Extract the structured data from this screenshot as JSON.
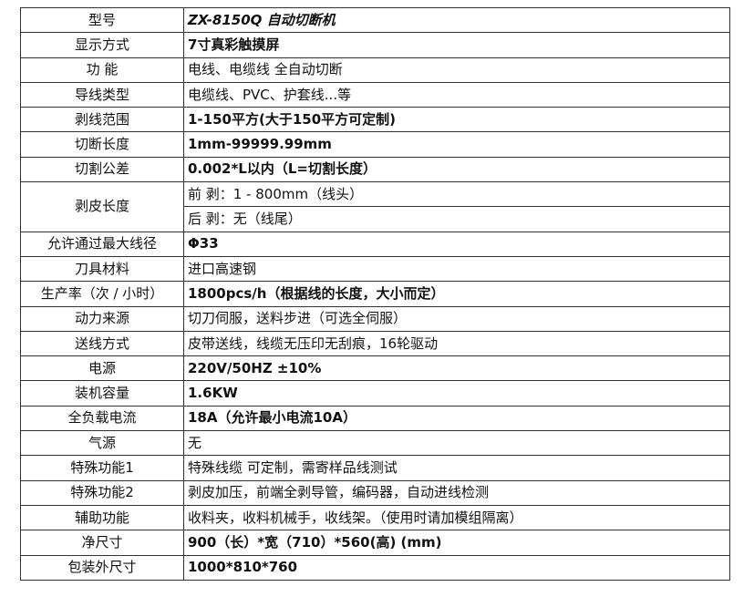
{
  "table": {
    "rows": [
      [
        "型号",
        "ZX-8150Q  自动切断机"
      ],
      [
        "显示方式",
        "7寸真彩触摸屏"
      ],
      [
        "功  能",
        "电线、电缆线 全自动切断"
      ],
      [
        "导线类型",
        "电缆线、PVC、护套线...等"
      ],
      [
        "剥线范围",
        "1-150平方(大于150平方可定制)"
      ],
      [
        "切断长度",
        "1mm-99999.99mm"
      ],
      [
        "切割公差",
        "0.002*L以内（L=切割长度）"
      ],
      [
        "剥皮长度",
        "前 剥：1 - 800mm（线头）",
        "后 剥：无（线尾）"
      ],
      [
        "允许通过最大线径",
        "Φ33"
      ],
      [
        "刀具材料",
        "进口高速钢"
      ],
      [
        "生产率（次 / 小时）",
        "1800pcs/h（根据线的长度，大小而定）"
      ],
      [
        "动力来源",
        "切刀伺服，送料步进（可选全伺服）"
      ],
      [
        "送线方式",
        "皮带送线，线缆无压印无刮痕，16轮驱动"
      ],
      [
        "电源",
        "220V/50HZ ±10%"
      ],
      [
        "装机容量",
        "1.6KW"
      ],
      [
        "全负载电流",
        "18A（允许最小电流10A）"
      ],
      [
        "气源",
        "无"
      ],
      [
        "特殊功能1",
        "特殊线缆 可定制，需寄样品线测试"
      ],
      [
        "特殊功能2",
        "剥皮加压，前端全剥导管，编码器，自动进线检测"
      ],
      [
        "辅助功能",
        "收料夹，收料机械手，收线架。（使用时请加模组隔离）"
      ],
      [
        "净尺寸",
        "900（长）*宽（710）*560(高)  (mm)"
      ],
      [
        "包装外尺寸",
        "1000*810*760"
      ]
    ]
  }
}
